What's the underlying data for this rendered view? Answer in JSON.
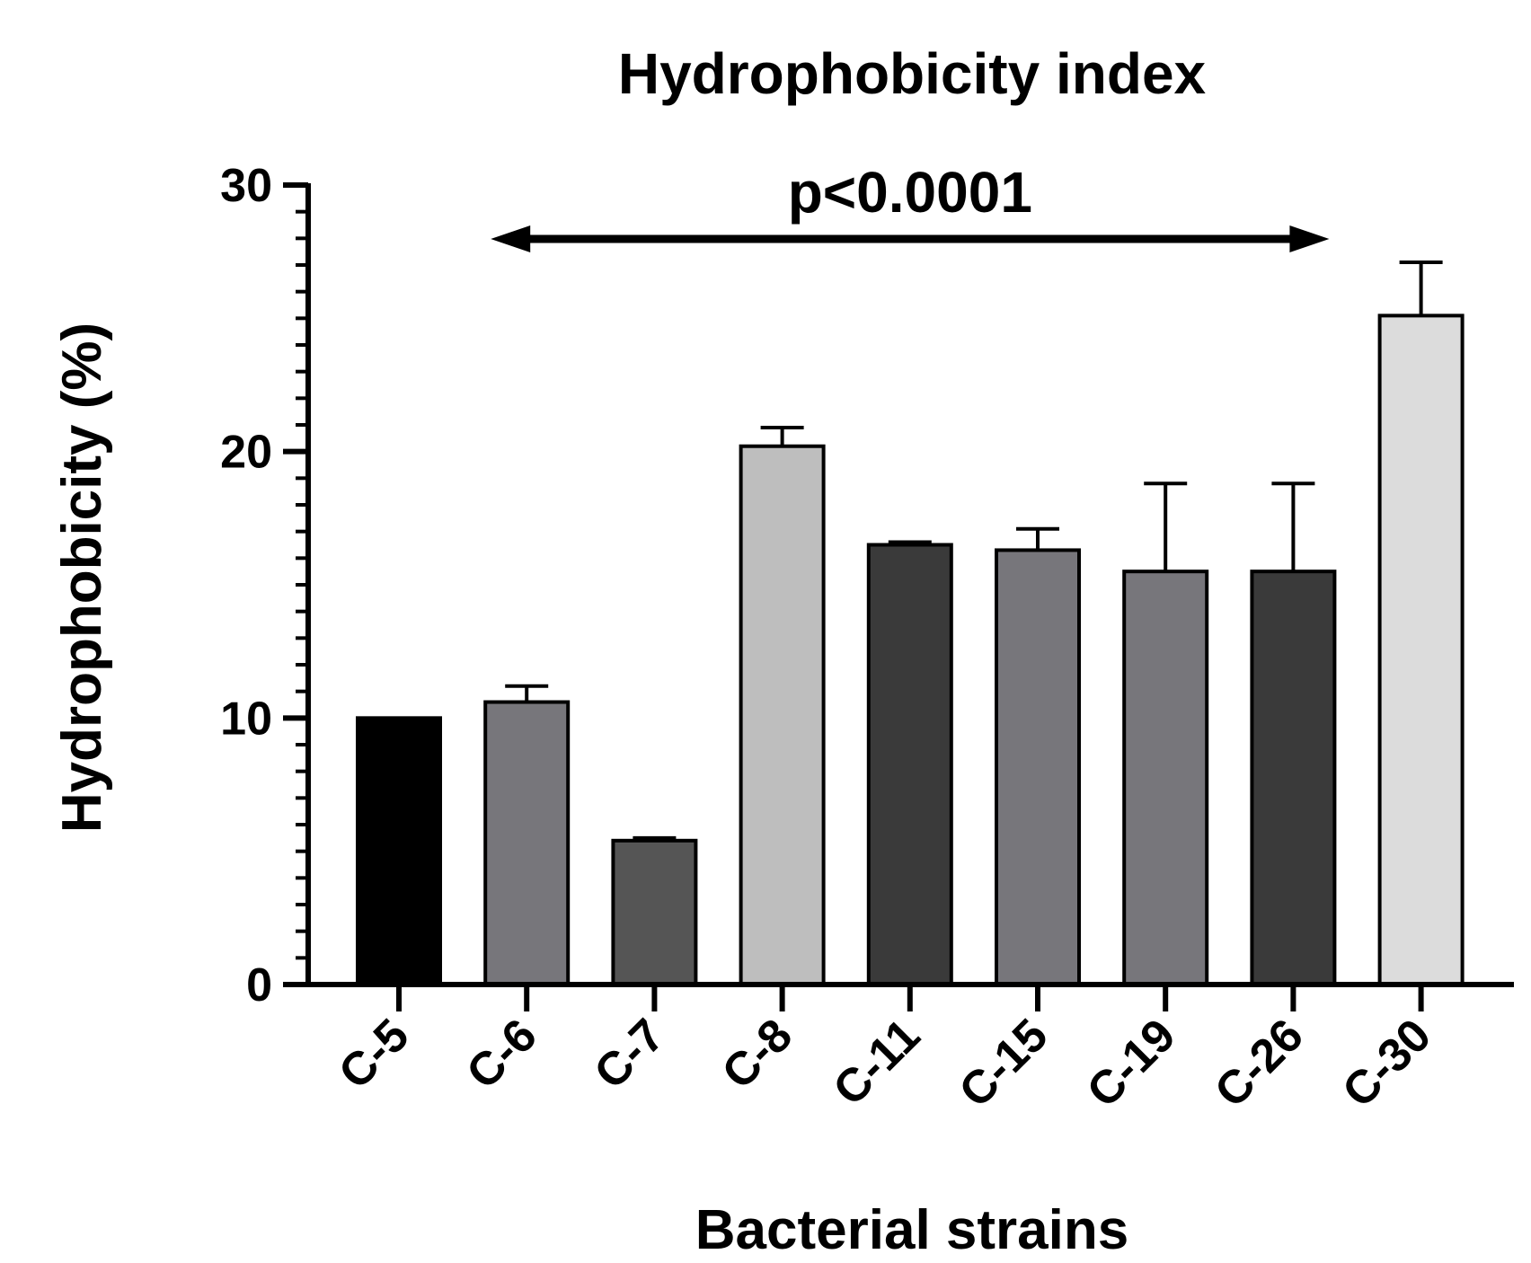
{
  "chart_data": {
    "type": "bar",
    "title": "Hydrophobicity index",
    "xlabel": "Bacterial strains",
    "ylabel": "Hydrophobicity (%)",
    "ylim": [
      0,
      30
    ],
    "yticks": [
      "0",
      "10",
      "20",
      "30"
    ],
    "categories": [
      "C-5",
      "C-6",
      "C-7",
      "C-8",
      "C-11",
      "C-15",
      "C-19",
      "C-26",
      "C-30"
    ],
    "values": [
      10.0,
      10.6,
      5.4,
      20.2,
      16.5,
      16.3,
      15.5,
      15.5,
      25.1
    ],
    "errors": [
      0.0,
      0.6,
      0.1,
      0.7,
      0.1,
      0.8,
      3.3,
      3.3,
      2.0
    ],
    "colors": [
      "#000000",
      "#77767b",
      "#555555",
      "#bebebe",
      "#3a3a3a",
      "#77767b",
      "#77767b",
      "#3a3a3a",
      "#dcdcdc"
    ],
    "grid": false,
    "annotation": {
      "text": "p<0.0001",
      "from_category": "C-6",
      "to_category": "C-26"
    }
  }
}
